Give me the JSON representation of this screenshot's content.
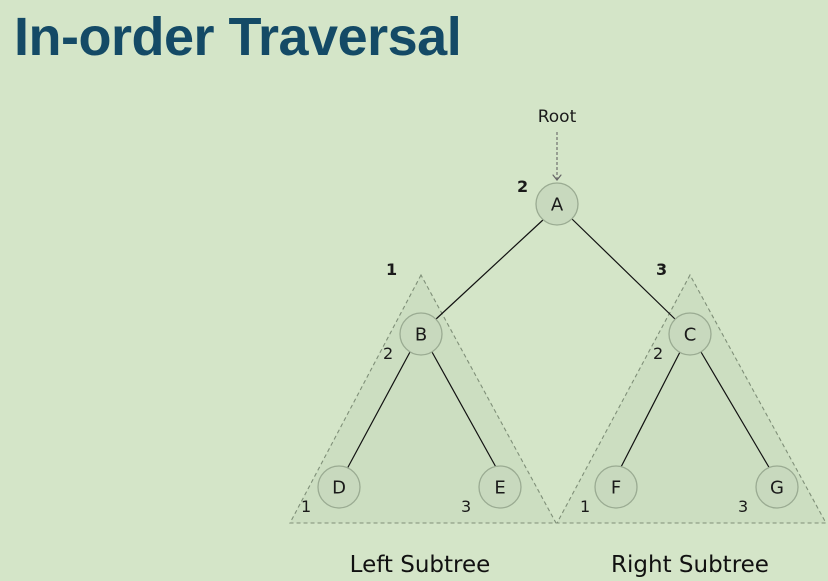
{
  "title": "In-order Traversal",
  "root_label": "Root",
  "nodes": {
    "A": "A",
    "B": "B",
    "C": "C",
    "D": "D",
    "E": "E",
    "F": "F",
    "G": "G"
  },
  "order_labels": {
    "root_A": "2",
    "left_subtree": "1",
    "right_subtree": "3",
    "node_B": "2",
    "node_C": "2",
    "node_D": "1",
    "node_E": "3",
    "node_F": "1",
    "node_G": "3"
  },
  "captions": {
    "left": "Left Subtree",
    "right": "Right Subtree"
  }
}
